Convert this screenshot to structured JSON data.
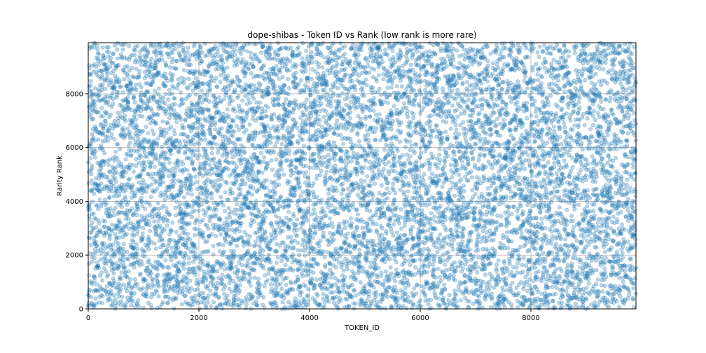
{
  "chart_data": {
    "type": "scatter",
    "title": "dope-shibas - Token ID vs Rank (low rank is more rare)",
    "xlabel": "TOKEN_ID",
    "ylabel": "Rarity Rank",
    "xlim": [
      0,
      9899
    ],
    "ylim": [
      0,
      9899
    ],
    "xticks": [
      0,
      2000,
      4000,
      6000,
      8000
    ],
    "yticks": [
      0,
      2000,
      4000,
      6000,
      8000
    ],
    "x_tick_labels": [
      "0",
      "2000",
      "4000",
      "6000",
      "8000"
    ],
    "y_tick_labels": [
      "0",
      "2000",
      "4000",
      "6000",
      "8000"
    ],
    "grid": true,
    "legend": "none",
    "colors": {
      "point_fill": "#1f77b4",
      "point_alpha": 0.3,
      "grid": "#b0b0b0",
      "axis": "#000000"
    },
    "series": [
      {
        "distribution": "uniform_random_permutation",
        "count": 9900,
        "x": [
          0,
          9899
        ],
        "y": [
          0,
          9899
        ]
      }
    ]
  }
}
